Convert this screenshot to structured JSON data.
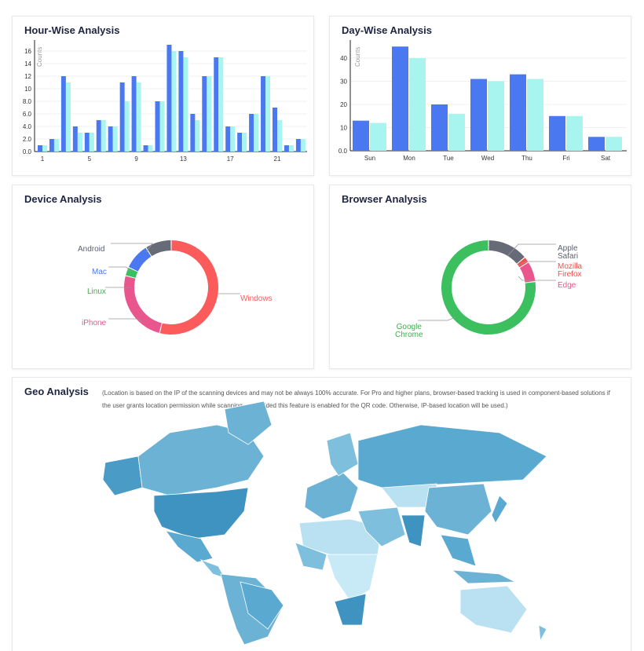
{
  "hour": {
    "title": "Hour-Wise Analysis",
    "ylabel": "Counts",
    "yticks": [
      "0.0",
      "2.0",
      "4.0",
      "6.0",
      "8.0",
      "10",
      "12",
      "14",
      "16"
    ],
    "xticks": [
      "1",
      "5",
      "9",
      "13",
      "17",
      "21"
    ],
    "chart_data": {
      "type": "bar",
      "x": [
        1,
        2,
        3,
        4,
        5,
        6,
        7,
        8,
        9,
        10,
        11,
        12,
        13,
        14,
        15,
        16,
        17,
        18,
        19,
        20,
        21,
        22,
        23
      ],
      "series": [
        {
          "name": "series1",
          "color": "#4a78f0",
          "values": [
            1,
            2,
            12,
            4,
            3,
            5,
            4,
            11,
            12,
            1,
            8,
            17,
            16,
            6,
            12,
            15,
            4,
            3,
            6,
            12,
            7,
            1,
            2
          ]
        },
        {
          "name": "series2",
          "color": "#a8f4ef",
          "values": [
            1,
            2,
            11,
            3,
            3,
            5,
            4,
            8,
            11,
            1,
            8,
            16,
            15,
            5,
            12,
            15,
            4,
            3,
            6,
            12,
            5,
            1,
            2
          ]
        }
      ],
      "ylim": [
        0,
        17
      ]
    }
  },
  "day": {
    "title": "Day-Wise Analysis",
    "ylabel": "Counts",
    "yticks": [
      "0.0",
      "10",
      "20",
      "30",
      "40"
    ],
    "chart_data": {
      "type": "bar",
      "categories": [
        "Sun",
        "Mon",
        "Tue",
        "Wed",
        "Thu",
        "Fri",
        "Sat"
      ],
      "series": [
        {
          "name": "series1",
          "color": "#4a78f0",
          "values": [
            13,
            45,
            20,
            31,
            33,
            15,
            6
          ]
        },
        {
          "name": "series2",
          "color": "#a8f4ef",
          "values": [
            12,
            40,
            16,
            30,
            31,
            15,
            6
          ]
        }
      ],
      "ylim": [
        0,
        46
      ]
    }
  },
  "device": {
    "title": "Device Analysis",
    "chart_data": {
      "type": "pie",
      "labels": [
        "Windows",
        "iPhone",
        "Linux",
        "Mac",
        "Android"
      ],
      "values": [
        54,
        25,
        3,
        9,
        9
      ],
      "colors": [
        "#fb5b5b",
        "#e9568e",
        "#3bbf5f",
        "#4a78f0",
        "#676b78"
      ]
    }
  },
  "browser": {
    "title": "Browser Analysis",
    "chart_data": {
      "type": "pie",
      "labels": [
        "Apple Safari",
        "Mozilla",
        "Firefox Edge",
        "Google Chrome"
      ],
      "values": [
        14,
        2,
        7,
        77
      ],
      "colors": [
        "#676b78",
        "#fb4b4b",
        "#e9568e",
        "#3bbf5f"
      ]
    },
    "label_lines": {
      "safari": [
        "Apple",
        "Safari"
      ],
      "mozilla": [
        "Mozilla",
        "Firefox"
      ],
      "edge": "Edge",
      "chrome": [
        "Google",
        "Chrome"
      ]
    }
  },
  "geo": {
    "title": "Geo Analysis",
    "note": "(Location is based on the IP of the scanning devices and may not be always 100% accurate. For Pro and higher plans, browser-based tracking is used in component-based solutions if the user grants location permission while scanning — provided this feature is enabled for the QR code. Otherwise, IP-based location will be used.)"
  }
}
